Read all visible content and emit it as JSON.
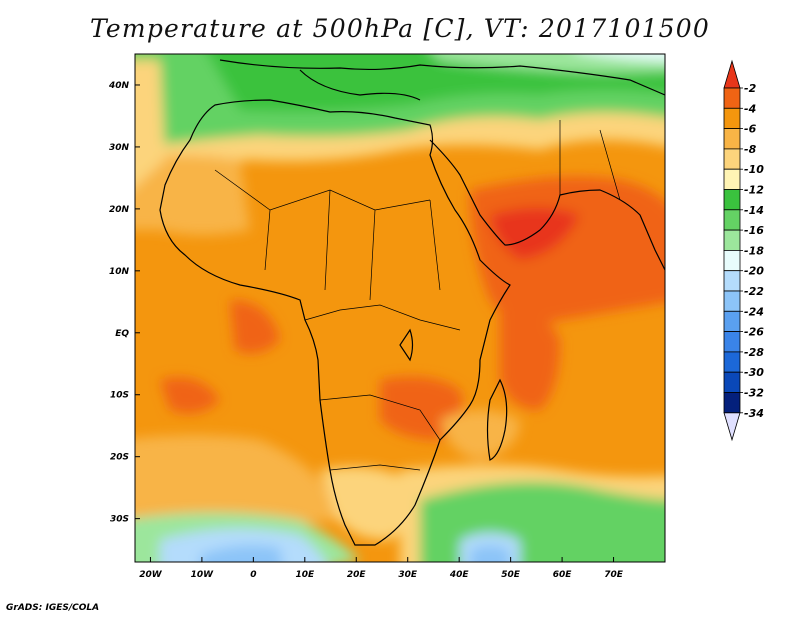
{
  "title": "Temperature at 500hPa [C], VT: 2017101500",
  "credit": "GrADS: IGES/COLA",
  "map": {
    "lon_range": [
      -23,
      80
    ],
    "lat_range": [
      -37,
      45
    ],
    "lon_ticks": [
      {
        "value": -20,
        "label": "20W"
      },
      {
        "value": -10,
        "label": "10W"
      },
      {
        "value": 0,
        "label": "0"
      },
      {
        "value": 10,
        "label": "10E"
      },
      {
        "value": 20,
        "label": "20E"
      },
      {
        "value": 30,
        "label": "30E"
      },
      {
        "value": 40,
        "label": "40E"
      },
      {
        "value": 50,
        "label": "50E"
      },
      {
        "value": 60,
        "label": "60E"
      },
      {
        "value": 70,
        "label": "70E"
      }
    ],
    "lat_ticks": [
      {
        "value": 40,
        "label": "40N"
      },
      {
        "value": 30,
        "label": "30N"
      },
      {
        "value": 20,
        "label": "20N"
      },
      {
        "value": 10,
        "label": "10N"
      },
      {
        "value": 0,
        "label": "EQ"
      },
      {
        "value": -10,
        "label": "10S"
      },
      {
        "value": -20,
        "label": "20S"
      },
      {
        "value": -30,
        "label": "30S"
      }
    ]
  },
  "colorbar": {
    "labels": [
      "-2",
      "-4",
      "-6",
      "-8",
      "-10",
      "-12",
      "-14",
      "-16",
      "-18",
      "-20",
      "-22",
      "-24",
      "-26",
      "-28",
      "-30",
      "-32",
      "-34"
    ],
    "colors": [
      "#e8361a",
      "#f06414",
      "#f4960e",
      "#f8b446",
      "#fcd47c",
      "#fff4b4",
      "#3ac23e",
      "#64d264",
      "#9ce69c",
      "#e8fcfc",
      "#b4dcfc",
      "#8cc4f8",
      "#5aa0f0",
      "#3a84e8",
      "#1c68d8",
      "#0a48b8",
      "#04207c",
      "#e0e0ff"
    ]
  }
}
